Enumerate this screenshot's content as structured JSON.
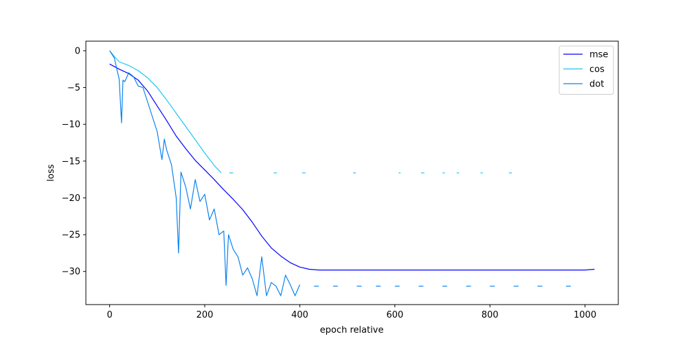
{
  "chart_data": {
    "type": "line",
    "xlabel": "epoch relative",
    "ylabel": "loss",
    "xlim": [
      -50,
      1070
    ],
    "ylim": [
      -34.5,
      1.3
    ],
    "xticks": [
      0,
      200,
      400,
      600,
      800,
      1000
    ],
    "yticks": [
      0,
      -5,
      -10,
      -15,
      -20,
      -25,
      -30
    ],
    "legend_position": "top-right",
    "grid": false,
    "series": [
      {
        "name": "mse",
        "color": "#0000ff",
        "x": [
          0,
          20,
          40,
          60,
          80,
          100,
          120,
          140,
          160,
          180,
          200,
          220,
          240,
          260,
          280,
          300,
          320,
          340,
          360,
          380,
          400,
          420,
          440,
          500,
          600,
          700,
          800,
          900,
          1000,
          1020
        ],
        "y": [
          -1.8,
          -2.5,
          -3.1,
          -4.0,
          -5.5,
          -7.5,
          -9.5,
          -11.6,
          -13.3,
          -14.9,
          -16.2,
          -17.5,
          -18.9,
          -20.2,
          -21.6,
          -23.3,
          -25.2,
          -26.8,
          -27.9,
          -28.8,
          -29.4,
          -29.7,
          -29.8,
          -29.8,
          -29.8,
          -29.8,
          -29.8,
          -29.8,
          -29.8,
          -29.7
        ]
      },
      {
        "name": "cos",
        "color": "#17c8f0",
        "x": [
          0,
          10,
          20,
          40,
          60,
          80,
          100,
          120,
          140,
          160,
          180,
          200,
          220,
          235
        ],
        "y": [
          0,
          -0.8,
          -1.5,
          -2.0,
          -2.7,
          -3.7,
          -5.0,
          -6.7,
          -8.5,
          -10.3,
          -12.1,
          -13.9,
          -15.6,
          -16.6
        ],
        "fragments": [
          [
            252,
            260
          ],
          [
            345,
            352
          ],
          [
            405,
            412
          ],
          [
            512,
            518
          ],
          [
            608,
            612
          ],
          [
            655,
            662
          ],
          [
            700,
            705
          ],
          [
            730,
            735
          ],
          [
            780,
            785
          ],
          [
            840,
            846
          ]
        ],
        "fragment_level": -16.6
      },
      {
        "name": "dot",
        "color": "#0a82f0",
        "x": [
          0,
          10,
          15,
          20,
          25,
          28,
          32,
          40,
          50,
          60,
          70,
          80,
          90,
          100,
          110,
          115,
          120,
          130,
          140,
          145,
          150,
          160,
          170,
          180,
          190,
          200,
          210,
          220,
          230,
          240,
          245,
          250,
          260,
          270,
          280,
          290,
          300,
          310,
          320,
          330,
          340,
          350,
          360,
          370,
          380,
          390,
          400
        ],
        "y": [
          0,
          -1.0,
          -2.5,
          -3.8,
          -9.8,
          -4.0,
          -4.2,
          -3.0,
          -3.5,
          -4.8,
          -5.0,
          -7.0,
          -9.0,
          -11.0,
          -14.8,
          -12.0,
          -13.5,
          -15.5,
          -20.0,
          -27.5,
          -16.5,
          -18.5,
          -21.5,
          -17.5,
          -20.5,
          -19.5,
          -23.0,
          -21.5,
          -25.0,
          -24.5,
          -31.9,
          -25.0,
          -27.0,
          -28.0,
          -30.5,
          -29.5,
          -31.0,
          -33.3,
          -28.0,
          -33.3,
          -31.5,
          -32.0,
          -33.3,
          -30.5,
          -31.8,
          -33.3,
          -31.8
        ],
        "fragments": [
          [
            430,
            440
          ],
          [
            470,
            480
          ],
          [
            520,
            530
          ],
          [
            560,
            570
          ],
          [
            600,
            610
          ],
          [
            650,
            660
          ],
          [
            700,
            710
          ],
          [
            750,
            760
          ],
          [
            800,
            810
          ],
          [
            850,
            860
          ],
          [
            900,
            910
          ],
          [
            960,
            970
          ]
        ],
        "fragment_level": -32.0
      }
    ]
  }
}
